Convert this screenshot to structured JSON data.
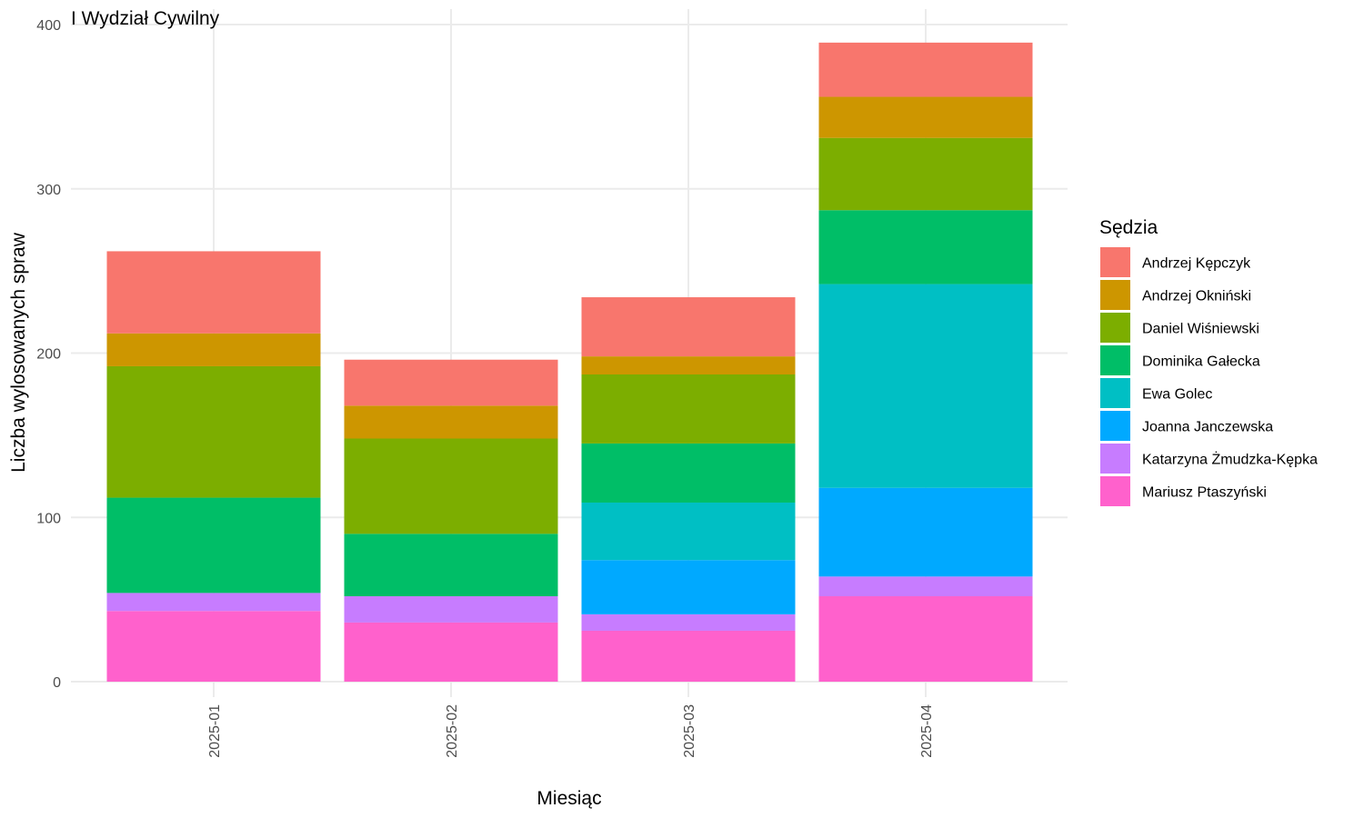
{
  "chart_data": {
    "type": "bar",
    "stacked": true,
    "title": "I Wydział Cywilny",
    "xlabel": "Miesiąc",
    "ylabel": "Liczba wylosowanych spraw",
    "ylim": [
      0,
      400
    ],
    "yticks": [
      0,
      100,
      200,
      300,
      400
    ],
    "grid": true,
    "legend_position": "right",
    "legend_title": "Sędzia",
    "categories": [
      "2025-01",
      "2025-02",
      "2025-03",
      "2025-04"
    ],
    "series": [
      {
        "name": "Andrzej Kępczyk",
        "color": "#F8766D",
        "values": [
          50,
          28,
          36,
          33
        ]
      },
      {
        "name": "Andrzej Okniński",
        "color": "#CD9600",
        "values": [
          20,
          20,
          11,
          25
        ]
      },
      {
        "name": "Daniel Wiśniewski",
        "color": "#7CAE00",
        "values": [
          80,
          58,
          42,
          44
        ]
      },
      {
        "name": "Dominika Gałecka",
        "color": "#00BE67",
        "values": [
          58,
          38,
          36,
          45
        ]
      },
      {
        "name": "Ewa Golec",
        "color": "#00BFC4",
        "values": [
          0,
          0,
          35,
          124
        ]
      },
      {
        "name": "Joanna Janczewska",
        "color": "#00A9FF",
        "values": [
          0,
          0,
          33,
          54
        ]
      },
      {
        "name": "Katarzyna Żmudzka-Kępka",
        "color": "#C77CFF",
        "values": [
          11,
          16,
          10,
          12
        ]
      },
      {
        "name": "Mariusz Ptaszyński",
        "color": "#FF61CC",
        "values": [
          43,
          36,
          31,
          52
        ]
      }
    ]
  }
}
